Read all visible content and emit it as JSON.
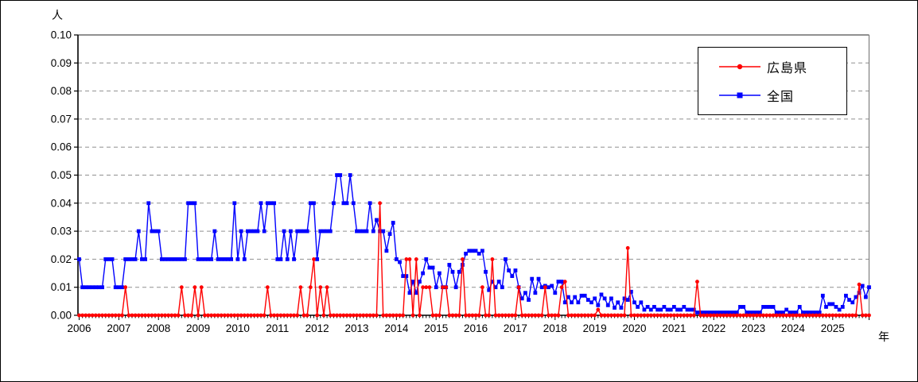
{
  "window": {
    "background": "#ffffff",
    "border_color": "#000000"
  },
  "chart_data": {
    "type": "line",
    "title": "",
    "ylabel": "人",
    "xlabel": "年",
    "ylim": [
      0,
      0.1
    ],
    "y_tick_step": 0.01,
    "y_tick_labels": [
      "0.00",
      "0.01",
      "0.02",
      "0.03",
      "0.04",
      "0.05",
      "0.06",
      "0.07",
      "0.08",
      "0.09",
      "0.10"
    ],
    "x_year_labels": [
      "2006",
      "2007",
      "2008",
      "2009",
      "2010",
      "2011",
      "2012",
      "2013",
      "2014",
      "2015",
      "2016",
      "2017",
      "2018",
      "2019",
      "2020",
      "2021",
      "2022",
      "2023",
      "2024",
      "2025"
    ],
    "x_unit": "month",
    "grid": "horizontal dashed gray at every 0.01",
    "legend_position": "top-right boxed",
    "frame_color": "#808080",
    "axis_color": "#000000",
    "grid_color": "#909090",
    "series": [
      {
        "name": "広島県",
        "color": "#ff0000",
        "marker": "circle",
        "values": [
          0,
          0,
          0,
          0,
          0,
          0,
          0,
          0,
          0,
          0,
          0,
          0,
          0,
          0,
          0.01,
          0,
          0,
          0,
          0,
          0,
          0,
          0,
          0,
          0,
          0,
          0,
          0,
          0,
          0,
          0,
          0,
          0.01,
          0,
          0,
          0,
          0.01,
          0,
          0.01,
          0,
          0,
          0,
          0,
          0,
          0,
          0,
          0,
          0,
          0,
          0,
          0,
          0,
          0,
          0,
          0,
          0,
          0,
          0,
          0.01,
          0,
          0,
          0,
          0,
          0,
          0,
          0,
          0,
          0,
          0.01,
          0,
          0,
          0.01,
          0.02,
          0,
          0.01,
          0,
          0.01,
          0,
          0,
          0,
          0,
          0,
          0,
          0,
          0,
          0,
          0,
          0,
          0,
          0,
          0,
          0,
          0.04,
          0,
          0,
          0,
          0,
          0,
          0,
          0,
          0.02,
          0.02,
          0,
          0.02,
          0,
          0.01,
          0.01,
          0.01,
          0,
          0,
          0,
          0.01,
          0.01,
          0,
          0,
          0,
          0,
          0.02,
          0,
          0,
          0,
          0,
          0,
          0.01,
          0,
          0,
          0.02,
          0,
          0,
          0,
          0,
          0,
          0,
          0,
          0.01,
          0,
          0,
          0,
          0,
          0,
          0,
          0,
          0.01,
          0,
          0,
          0,
          0,
          0.01,
          0.012,
          0,
          0,
          0,
          0,
          0,
          0,
          0,
          0,
          0,
          0.002,
          0,
          0,
          0,
          0,
          0,
          0,
          0,
          0,
          0.024,
          0,
          0,
          0,
          0,
          0,
          0,
          0,
          0,
          0,
          0,
          0,
          0,
          0,
          0,
          0,
          0,
          0,
          0,
          0,
          0,
          0.012,
          0,
          0,
          0,
          0,
          0,
          0,
          0,
          0,
          0,
          0,
          0,
          0,
          0,
          0,
          0,
          0,
          0,
          0,
          0,
          0,
          0,
          0,
          0,
          0,
          0,
          0,
          0,
          0,
          0,
          0,
          0,
          0,
          0,
          0,
          0,
          0,
          0,
          0,
          0,
          0,
          0,
          0,
          0,
          0,
          0,
          0,
          0,
          0,
          0.011,
          0,
          0,
          0
        ]
      },
      {
        "name": "全国",
        "color": "#0000ff",
        "marker": "square",
        "values": [
          0.02,
          0.01,
          0.01,
          0.01,
          0.01,
          0.01,
          0.01,
          0.01,
          0.02,
          0.02,
          0.02,
          0.01,
          0.01,
          0.01,
          0.02,
          0.02,
          0.02,
          0.02,
          0.03,
          0.02,
          0.02,
          0.04,
          0.03,
          0.03,
          0.03,
          0.02,
          0.02,
          0.02,
          0.02,
          0.02,
          0.02,
          0.02,
          0.02,
          0.04,
          0.04,
          0.04,
          0.02,
          0.02,
          0.02,
          0.02,
          0.02,
          0.03,
          0.02,
          0.02,
          0.02,
          0.02,
          0.02,
          0.04,
          0.02,
          0.03,
          0.02,
          0.03,
          0.03,
          0.03,
          0.03,
          0.04,
          0.03,
          0.04,
          0.04,
          0.04,
          0.02,
          0.02,
          0.03,
          0.02,
          0.03,
          0.02,
          0.03,
          0.03,
          0.03,
          0.03,
          0.04,
          0.04,
          0.02,
          0.03,
          0.03,
          0.03,
          0.03,
          0.04,
          0.05,
          0.05,
          0.04,
          0.04,
          0.05,
          0.04,
          0.03,
          0.03,
          0.03,
          0.03,
          0.04,
          0.03,
          0.034,
          0.03,
          0.03,
          0.023,
          0.029,
          0.033,
          0.02,
          0.019,
          0.014,
          0.014,
          0.008,
          0.012,
          0.008,
          0.012,
          0.015,
          0.02,
          0.017,
          0.017,
          0.01,
          0.015,
          0.01,
          0.01,
          0.018,
          0.0155,
          0.01,
          0.0155,
          0.018,
          0.022,
          0.023,
          0.023,
          0.023,
          0.022,
          0.023,
          0.0155,
          0.009,
          0.012,
          0.01,
          0.012,
          0.01,
          0.02,
          0.016,
          0.014,
          0.016,
          0.01,
          0.006,
          0.008,
          0.0055,
          0.013,
          0.008,
          0.013,
          0.01,
          0.0105,
          0.01,
          0.0105,
          0.008,
          0.012,
          0.012,
          0.0046,
          0.0065,
          0.0046,
          0.0065,
          0.0046,
          0.007,
          0.007,
          0.0055,
          0.0046,
          0.006,
          0.0036,
          0.0074,
          0.006,
          0.0036,
          0.006,
          0.0027,
          0.0046,
          0.0027,
          0.006,
          0.0055,
          0.0084,
          0.0046,
          0.003,
          0.0046,
          0.002,
          0.003,
          0.002,
          0.003,
          0.002,
          0.002,
          0.003,
          0.002,
          0.002,
          0.003,
          0.002,
          0.002,
          0.003,
          0.002,
          0.002,
          0.002,
          0.001,
          0.001,
          0.001,
          0.001,
          0.001,
          0.001,
          0.001,
          0.001,
          0.001,
          0.001,
          0.001,
          0.001,
          0.001,
          0.003,
          0.003,
          0.001,
          0.001,
          0.001,
          0.001,
          0.001,
          0.003,
          0.003,
          0.003,
          0.003,
          0.001,
          0.001,
          0.001,
          0.002,
          0.001,
          0.001,
          0.001,
          0.003,
          0.001,
          0.001,
          0.001,
          0.001,
          0.001,
          0.001,
          0.007,
          0.003,
          0.004,
          0.004,
          0.003,
          0.002,
          0.003,
          0.007,
          0.0055,
          0.0046,
          0.0065,
          0.008,
          0.0105,
          0.0065,
          0.01
        ]
      }
    ]
  }
}
